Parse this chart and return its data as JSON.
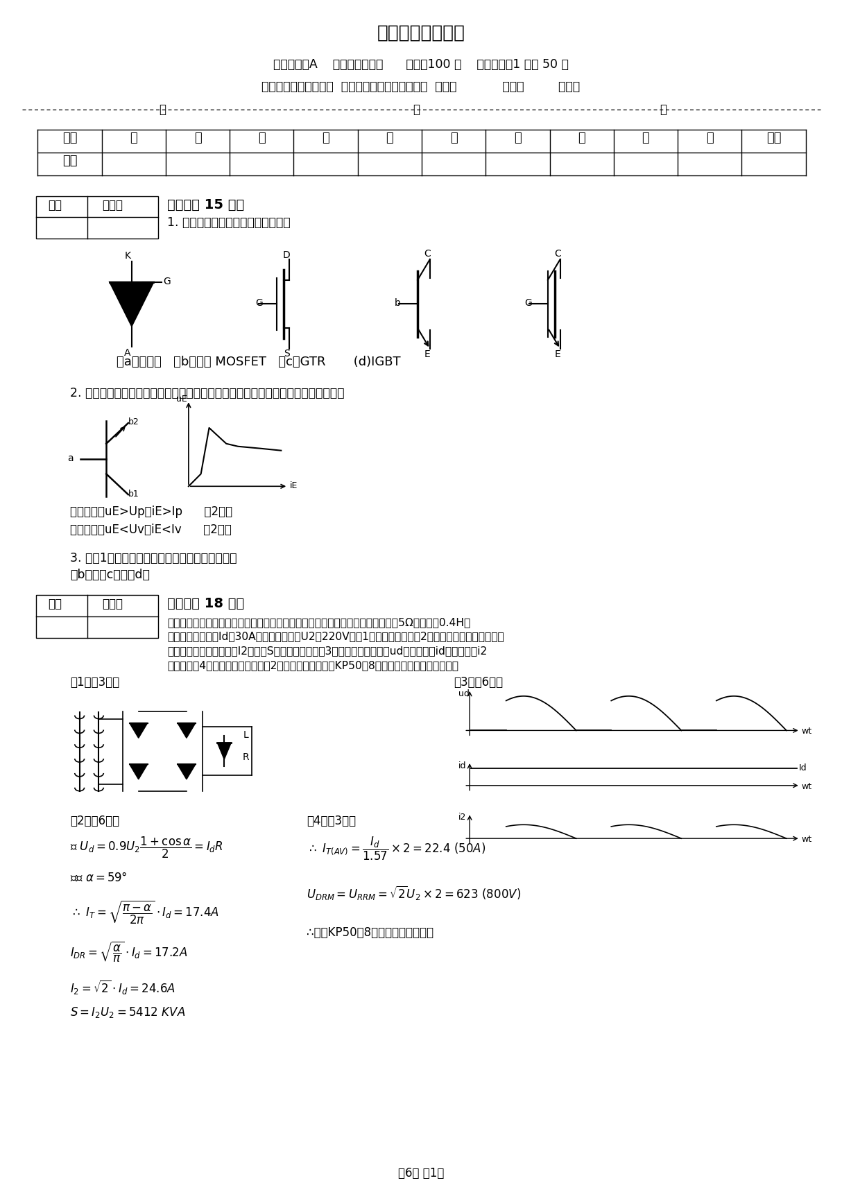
{
  "title": "电力电子考试试卷",
  "line1": "试卷类型：A    考试形式：闭卷      满分：100 分    考试时间：1 小时 50 分",
  "line2": "考试科目：电力电子学  专业：电气工程及其自动化  班级：            姓名：         学号：",
  "table_headers": [
    "题号",
    "一",
    "二",
    "三",
    "四",
    "五",
    "六",
    "七",
    "八",
    "九",
    "十",
    "总分"
  ],
  "table_row2": [
    "得分",
    "",
    "",
    "",
    "",
    "",
    "",
    "",
    "",
    "",
    "",
    ""
  ],
  "section1_header": "一、（共 15 分）",
  "section1_q1": "1. 写出下列电路符号的名称或简称。",
  "device_label": "（a）晶闸管   （b）电力 MOSFET   （c）GTR       (d)IGBT",
  "section1_q2": "2. 画出单结晶体管的电路符号及伏安特性；说明单结晶体管的导通条件和截止条件。",
  "conduction_text": "导通条件：uE>Up，iE>Ip      （2分）",
  "cutoff_text": "截止条件：uE<Uv，iE<Iv      （2分）",
  "section1_q3": "3. 在第1题所给的器件中，哪些属于自关断器件？",
  "section1_q3_ans": "（b），（c），（d）",
  "section2_header": "二、（共 18 分）",
  "section2_lines": [
    "具有续流二极管的单相桥式全控整流电路，对发电机励磁绕组供电。绕组的电阻为5Ω，电感为0.4H，",
    "励磁直流平均电流Id为30A，交流电源电压U2为220V。（1）画出电路图；（2）计算晶闸管和续流二极管",
    "的电流有效值；电源电流I2、容量S以及功率因数；（3）作出整流输出电压ud、输出电流id和电源电流i2",
    "的波形；（4）若电压和电流都考虑2倍的安全裕量，采用KP50－8的晶闸管是否合理？为什么？"
  ],
  "note1": "（1）（3分）",
  "note2": "（2）（6分）",
  "note3": "（3）（6分）",
  "note4": "（4）（3分）",
  "footer": "共6页 第1页",
  "bg_color": "#ffffff",
  "text_color": "#000000"
}
